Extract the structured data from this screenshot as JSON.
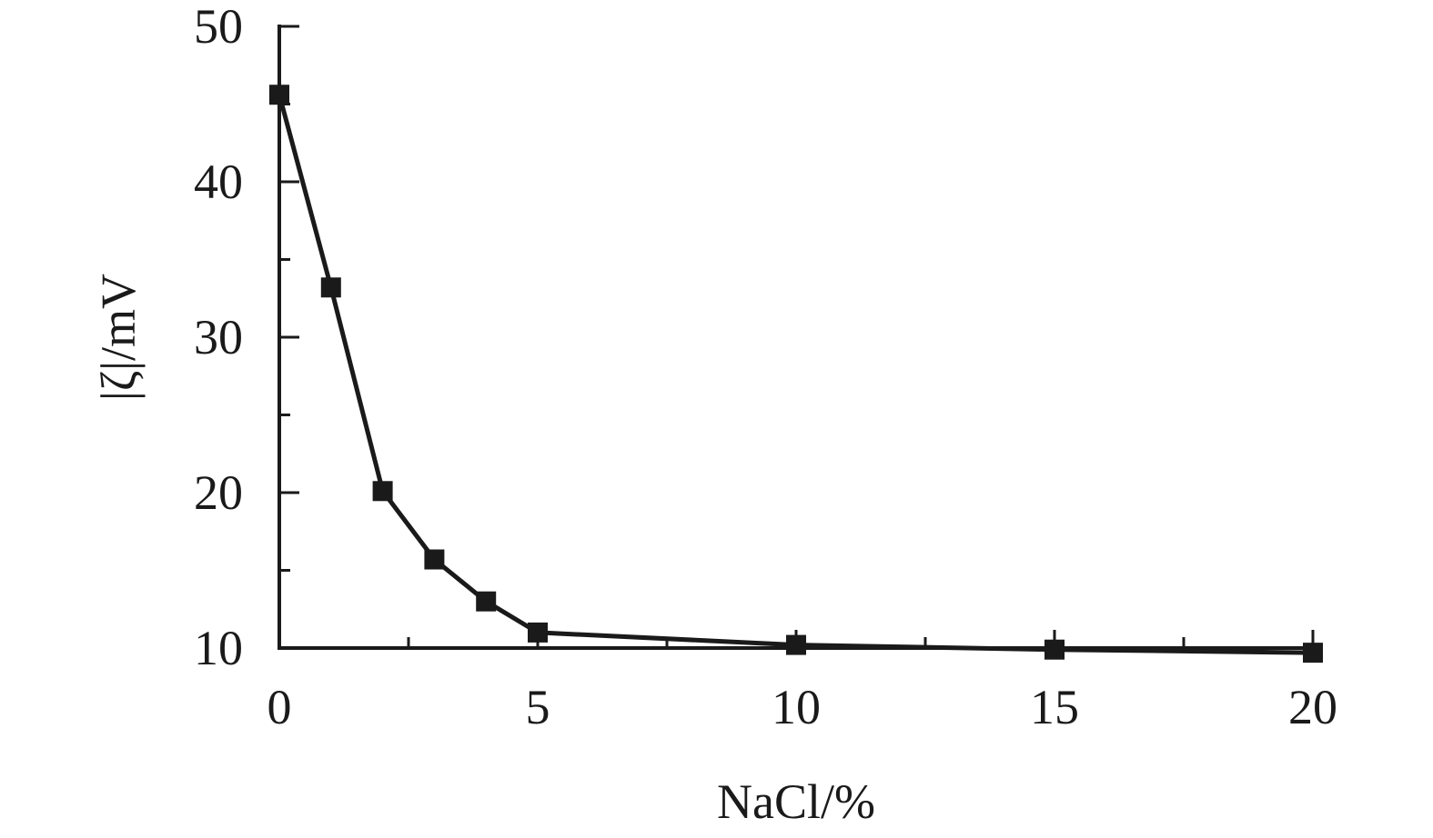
{
  "chart_data": {
    "type": "line",
    "title": "",
    "xlabel": "NaCl/%",
    "ylabel": "|ζ|/mV",
    "xlim": [
      0,
      20
    ],
    "ylim": [
      10,
      50
    ],
    "x_ticks": [
      0,
      5,
      10,
      15,
      20
    ],
    "y_ticks": [
      10,
      20,
      30,
      40,
      50
    ],
    "x_tick_labels": [
      "0",
      "5",
      "10",
      "15",
      "20"
    ],
    "y_tick_labels": [
      "10",
      "20",
      "30",
      "40",
      "50"
    ],
    "grid": false,
    "marker": "square",
    "colors": {
      "line": "#1a1a1a",
      "axis": "#1a1a1a"
    },
    "series": [
      {
        "x": [
          0,
          1,
          2,
          3,
          4,
          5,
          10,
          15,
          20
        ],
        "values": [
          45.6,
          33.2,
          20.1,
          15.7,
          13.0,
          11.0,
          10.2,
          9.9,
          9.7
        ]
      }
    ]
  }
}
